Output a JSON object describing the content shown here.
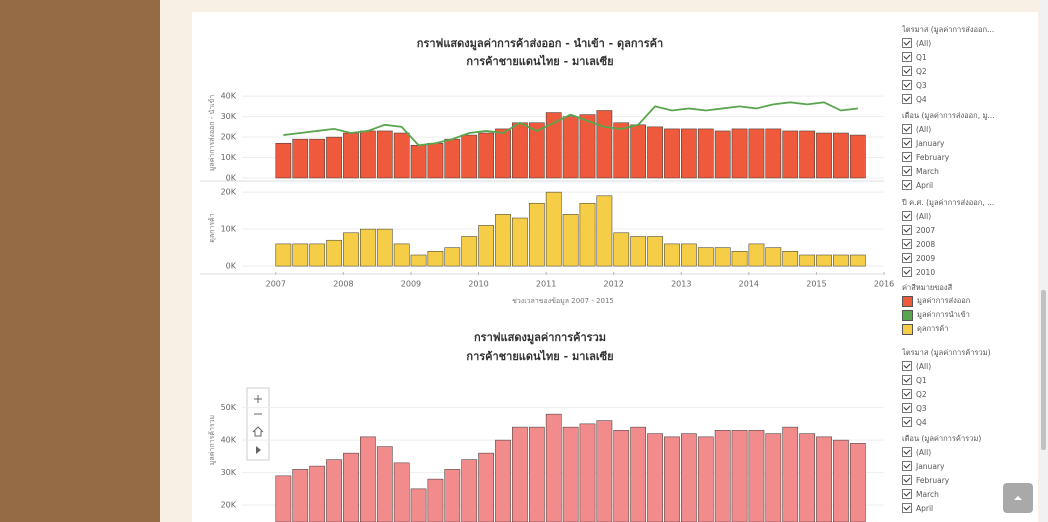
{
  "chart_data": [
    {
      "type": "bar",
      "title": "กราฟแสดงมูลค่าการค้าส่งออก - นำเข้า - ดุลการค้า",
      "subtitle": "การค้าชายแดนไทย - มาเลเซีย",
      "ylabel": "มูลค่าการส่งออก - นำเข้า",
      "legend_title": "ค่าสีหมายของสี",
      "grid": true,
      "x": [
        2007,
        2007.25,
        2007.5,
        2007.75,
        2008,
        2008.25,
        2008.5,
        2008.75,
        2009,
        2009.25,
        2009.5,
        2009.75,
        2010,
        2010.25,
        2010.5,
        2010.75,
        2011,
        2011.25,
        2011.5,
        2011.75,
        2012,
        2012.25,
        2012.5,
        2012.75,
        2013,
        2013.25,
        2013.5,
        2013.75,
        2014,
        2014.25,
        2014.5,
        2014.75,
        2015,
        2015.25,
        2015.5
      ],
      "xlim": [
        2006.5,
        2016
      ],
      "ylim": [
        0,
        44000
      ],
      "yticks": [
        {
          "value": 0,
          "label": "0K"
        },
        {
          "value": 10000,
          "label": "10K"
        },
        {
          "value": 20000,
          "label": "20K"
        },
        {
          "value": 30000,
          "label": "30K"
        },
        {
          "value": 40000,
          "label": "40K"
        }
      ],
      "series": [
        {
          "name": "มูลค่าการส่งออก",
          "color": "#ef5a3c",
          "type": "bar",
          "values": [
            17000,
            19000,
            19000,
            20000,
            22000,
            23000,
            23000,
            22000,
            16000,
            17000,
            19000,
            21000,
            22000,
            24000,
            27000,
            27000,
            32000,
            30000,
            31000,
            33000,
            27000,
            26000,
            25000,
            24000,
            24000,
            24000,
            23000,
            24000,
            24000,
            24000,
            23000,
            23000,
            22000,
            22000,
            21000
          ]
        },
        {
          "name": "มูลค่าการนำเข้า",
          "color": "#5aa64e",
          "type": "line",
          "values": [
            21000,
            22000,
            23000,
            24000,
            22000,
            23000,
            26000,
            25000,
            16000,
            17000,
            19000,
            22000,
            23000,
            22000,
            27000,
            23000,
            27000,
            31000,
            28000,
            25000,
            24000,
            26000,
            35000,
            33000,
            34000,
            33000,
            34000,
            35000,
            34000,
            36000,
            37000,
            36000,
            37000,
            33000,
            34000
          ]
        }
      ]
    },
    {
      "type": "bar",
      "ylabel": "ดุลการค้า",
      "xlabel": "ช่วงเวลาของข้อมูล 2007 - 2015",
      "grid": true,
      "x": [
        2007,
        2007.25,
        2007.5,
        2007.75,
        2008,
        2008.25,
        2008.5,
        2008.75,
        2009,
        2009.25,
        2009.5,
        2009.75,
        2010,
        2010.25,
        2010.5,
        2010.75,
        2011,
        2011.25,
        2011.5,
        2011.75,
        2012,
        2012.25,
        2012.5,
        2012.75,
        2013,
        2013.25,
        2013.5,
        2013.75,
        2014,
        2014.25,
        2014.5,
        2014.75,
        2015,
        2015.25,
        2015.5
      ],
      "xlim": [
        2006.5,
        2016
      ],
      "xticks": [
        2007,
        2008,
        2009,
        2010,
        2011,
        2012,
        2013,
        2014,
        2015,
        2016
      ],
      "ylim": [
        -1600,
        22200
      ],
      "yticks": [
        {
          "value": 0,
          "label": "0K"
        },
        {
          "value": 10000,
          "label": "10K"
        },
        {
          "value": 20000,
          "label": "20K"
        }
      ],
      "series": [
        {
          "name": "ดุลการค้า",
          "color": "#f5cd47",
          "type": "bar",
          "values": [
            6000,
            6000,
            6000,
            7000,
            9000,
            10000,
            10000,
            6000,
            3000,
            4000,
            5000,
            8000,
            11000,
            14000,
            13000,
            17000,
            20000,
            14000,
            17000,
            19000,
            9000,
            8000,
            8000,
            6000,
            6000,
            5000,
            5000,
            4000,
            6000,
            5000,
            4000,
            3000,
            3000,
            3000,
            3000
          ]
        }
      ]
    },
    {
      "type": "bar",
      "title": "กราฟแสดงมูลค่าการค้ารวม",
      "subtitle": "การค้าชายแดนไทย - มาเลเซีย",
      "ylabel": "มูลค่าการค้ารวม",
      "grid": true,
      "x": [
        2007,
        2007.25,
        2007.5,
        2007.75,
        2008,
        2008.25,
        2008.5,
        2008.75,
        2009,
        2009.25,
        2009.5,
        2009.75,
        2010,
        2010.25,
        2010.5,
        2010.75,
        2011,
        2011.25,
        2011.5,
        2011.75,
        2012,
        2012.25,
        2012.5,
        2012.75,
        2013,
        2013.25,
        2013.5,
        2013.75,
        2014,
        2014.25,
        2014.5,
        2014.75,
        2015,
        2015.25,
        2015.5
      ],
      "xlim": [
        2006.5,
        2016
      ],
      "ylim": [
        14800,
        58500
      ],
      "yticks": [
        {
          "value": 20000,
          "label": "20K"
        },
        {
          "value": 30000,
          "label": "30K"
        },
        {
          "value": 40000,
          "label": "40K"
        },
        {
          "value": 50000,
          "label": "50K"
        }
      ],
      "series": [
        {
          "name": "มูลค่าการค้ารวม",
          "color": "#f28b8b",
          "type": "bar",
          "values": [
            29000,
            31000,
            32000,
            34000,
            36000,
            41000,
            38000,
            33000,
            25000,
            28000,
            31000,
            34000,
            36000,
            40000,
            44000,
            44000,
            48000,
            44000,
            45000,
            46000,
            43000,
            44000,
            42000,
            41000,
            42000,
            41000,
            43000,
            43000,
            43000,
            42000,
            44000,
            42000,
            41000,
            40000,
            39000
          ]
        }
      ]
    }
  ],
  "filters": [
    {
      "title": "ไตรมาส (มูลค่าการส่งออก...",
      "options": [
        "(All)",
        "Q1",
        "Q2",
        "Q3",
        "Q4"
      ]
    },
    {
      "title": "เดือน (มูลค่าการส่งออก, มู...",
      "options": [
        "(All)",
        "January",
        "February",
        "March",
        "April"
      ]
    },
    {
      "title": "ปี ค.ศ. (มูลค่าการส่งออก, ...",
      "options": [
        "(All)",
        "2007",
        "2008",
        "2009",
        "2010"
      ]
    },
    {
      "title": "ไตรมาส (มูลค่าการค้ารวม)",
      "options": [
        "(All)",
        "Q1",
        "Q2",
        "Q3",
        "Q4"
      ]
    },
    {
      "title": "เดือน (มูลค่าการค้ารวม)",
      "options": [
        "(All)",
        "January",
        "February",
        "March",
        "April"
      ]
    }
  ]
}
